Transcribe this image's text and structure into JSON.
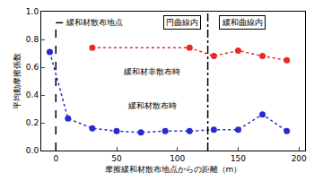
{
  "chart_data": {
    "type": "line",
    "x_label": "摩擦緩和材散布地点からの距離（m）",
    "y_label": "平均動摩擦係数",
    "xlim": [
      -12,
      205
    ],
    "xticks": [
      0,
      50,
      100,
      150,
      200
    ],
    "ylim": [
      0,
      1.0
    ],
    "yticks": [
      {
        "value": 0,
        "label": "0.0"
      },
      {
        "value": 0.2,
        "label": "0.2"
      },
      {
        "value": 0.4,
        "label": "0.4"
      },
      {
        "value": 0.6,
        "label": "0.6"
      },
      {
        "value": 0.8,
        "label": "0.8"
      },
      {
        "value": 1.0,
        "label": "1.0"
      }
    ],
    "grid": false,
    "series": [
      {
        "name": "緩和材非散布時",
        "color": "#e8292a",
        "marker": "circle",
        "line_style": "dot",
        "x": [
          30,
          110,
          130,
          150,
          170,
          190
        ],
        "values": [
          0.74,
          0.74,
          0.68,
          0.72,
          0.68,
          0.65
        ]
      },
      {
        "name": "緩和材散布時",
        "color": "#2a2ad0",
        "marker": "circle",
        "line_style": "dot",
        "x": [
          -5,
          10,
          30,
          50,
          70,
          90,
          110,
          130,
          150,
          170,
          190
        ],
        "values": [
          0.71,
          0.23,
          0.16,
          0.14,
          0.13,
          0.14,
          0.14,
          0.15,
          0.15,
          0.26,
          0.14
        ]
      }
    ],
    "vlines": [
      {
        "x": 0,
        "label": "緩和材散布地点",
        "line_style": "dash"
      },
      {
        "x": 125,
        "line_style": "dashdot"
      }
    ],
    "region_labels": [
      "円曲線内",
      "緩和曲線内"
    ]
  }
}
